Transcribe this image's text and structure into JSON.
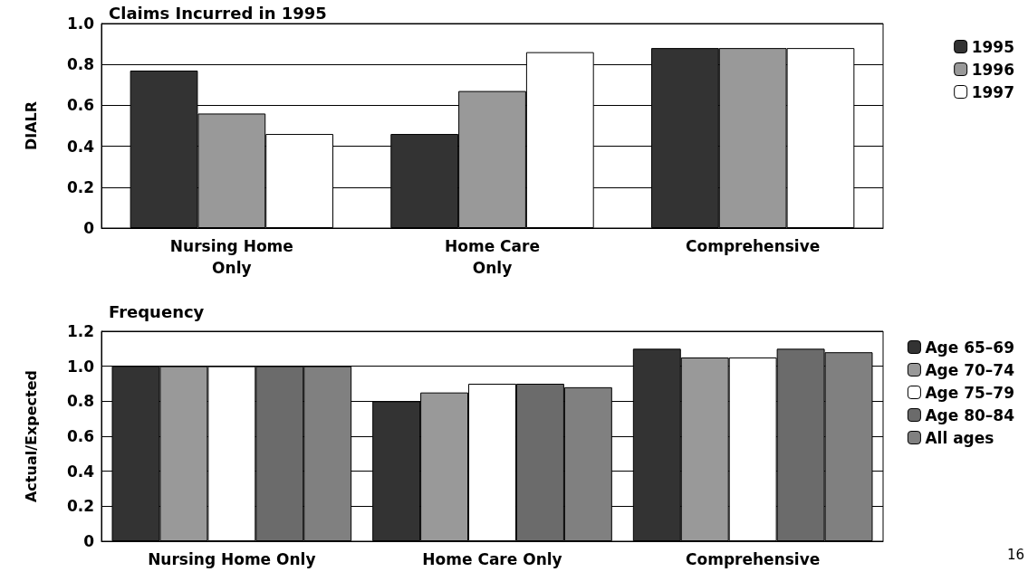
{
  "chart_data": [
    {
      "type": "bar",
      "title": "Claims Incurred in 1995",
      "ylabel": "DIALR",
      "categories": [
        "Nursing Home\nOnly",
        "Home Care\nOnly",
        "Comprehensive"
      ],
      "series": [
        {
          "name": "1995",
          "color": "#333333",
          "values": [
            0.77,
            0.46,
            0.88
          ]
        },
        {
          "name": "1996",
          "color": "#999999",
          "values": [
            0.56,
            0.67,
            0.88
          ]
        },
        {
          "name": "1997",
          "color": "#ffffff",
          "values": [
            0.46,
            0.86,
            0.88
          ]
        }
      ],
      "ylim": [
        0,
        1.0
      ],
      "yticks": [
        0,
        {
          "value": 0.2,
          "label": "0.2"
        },
        {
          "value": 0.4,
          "label": "0.4"
        },
        {
          "value": 0.6,
          "label": "0.6"
        },
        {
          "value": 0.8,
          "label": "0.8"
        },
        {
          "value": 1.0,
          "label": "1.0"
        }
      ],
      "grid": "y",
      "legend": "top right"
    },
    {
      "type": "bar",
      "title": "Frequency",
      "ylabel": "Actual/Expected",
      "categories": [
        "Nursing Home Only",
        "Home Care Only",
        "Comprehensive"
      ],
      "series": [
        {
          "name": "Age 65–69",
          "color": "#333333",
          "values": [
            1.0,
            0.8,
            1.1
          ]
        },
        {
          "name": "Age 70–74",
          "color": "#999999",
          "values": [
            1.0,
            0.85,
            1.05
          ]
        },
        {
          "name": "Age 75–79",
          "color": "#ffffff",
          "values": [
            1.0,
            0.9,
            1.05
          ]
        },
        {
          "name": "Age 80–84",
          "color": "#6b6b6b",
          "values": [
            1.0,
            0.9,
            1.1
          ]
        },
        {
          "name": "All ages",
          "color": "#808080",
          "values": [
            1.0,
            0.88,
            1.08
          ]
        }
      ],
      "ylim": [
        0,
        1.2
      ],
      "yticks": [
        0,
        {
          "value": 0.2,
          "label": "0.2"
        },
        {
          "value": 0.4,
          "label": "0.4"
        },
        {
          "value": 0.6,
          "label": "0.6"
        },
        {
          "value": 0.8,
          "label": "0.8"
        },
        {
          "value": 1.0,
          "label": "1.0"
        },
        {
          "value": 1.2,
          "label": "1.2"
        }
      ],
      "grid": "y",
      "legend": "top right",
      "annotations": [
        "16"
      ]
    }
  ]
}
